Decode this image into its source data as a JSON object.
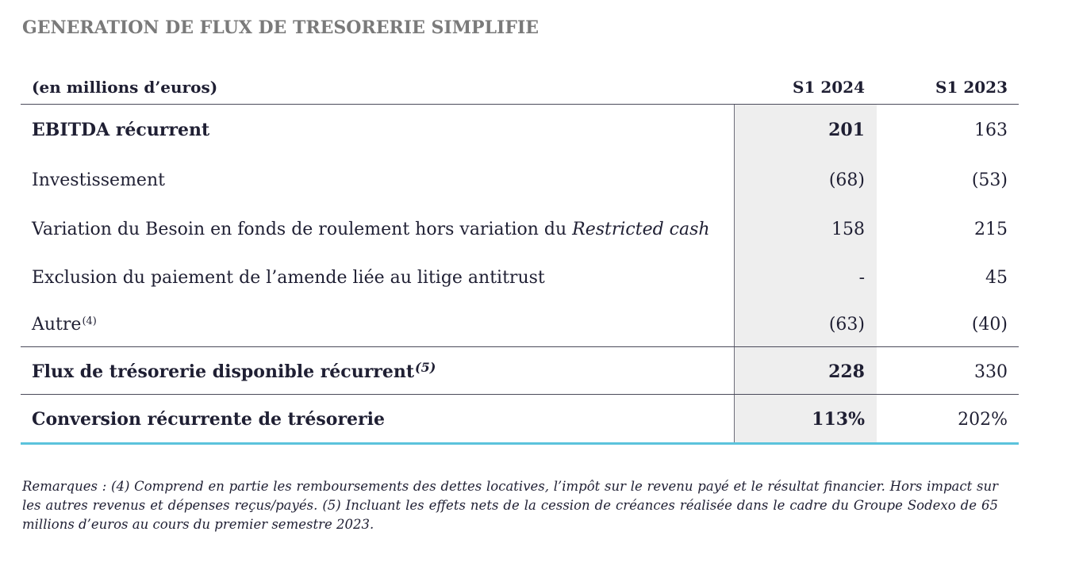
{
  "title": "GENERATION DE FLUX DE TRESORERIE SIMPLIFIE",
  "table": {
    "header": {
      "label": "(en millions d’euros)",
      "col1": "S1 2024",
      "col2": "S1 2023"
    },
    "rows": [
      {
        "label": "EBITDA récurrent",
        "col1": "201",
        "col2": "163"
      },
      {
        "label": "Investissement",
        "col1": "(68)",
        "col2": "(53)"
      },
      {
        "label_main": "Variation du Besoin en fonds de roulement hors variation du ",
        "label_italic": "Restricted cash",
        "col1": "158",
        "col2": "215"
      },
      {
        "label": "Exclusion du paiement de l’amende liée au litige antitrust",
        "col1": "-",
        "col2": "45"
      },
      {
        "label": "Autre",
        "note": "(4)",
        "col1": "(63)",
        "col2": "(40)"
      },
      {
        "label": "Flux de trésorerie disponible récurrent",
        "note": "(5)",
        "col1": "228",
        "col2": "330"
      },
      {
        "label": "Conversion récurrente de trésorerie",
        "col1": "113%",
        "col2": "202%"
      }
    ]
  },
  "remarks": "Remarques : (4) Comprend en partie les remboursements des dettes locatives, l’impôt sur le revenu payé et le résultat financier. Hors impact sur les autres revenus et dépenses reçus/payés. (5) Incluant les effets nets de la cession de créances réalisée dans le cadre du Groupe Sodexo de 65 millions d’euros au cours du premier semestre 2023."
}
